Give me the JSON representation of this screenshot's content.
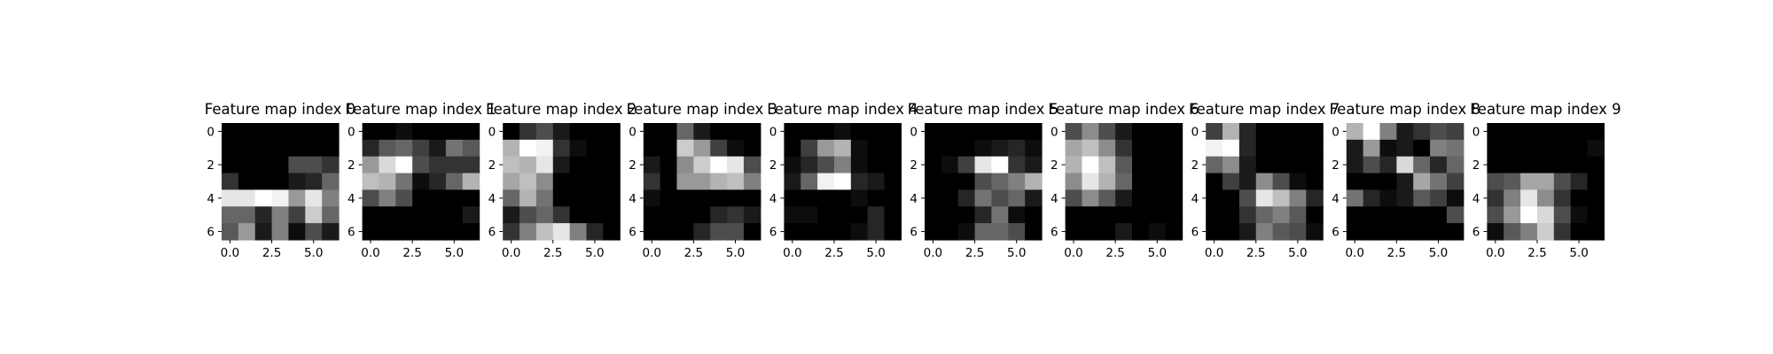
{
  "chart_data": {
    "type": "heatmap",
    "colormap": "gray",
    "value_range": [
      0,
      1
    ],
    "xticks": [
      0,
      2.5,
      5
    ],
    "xtick_labels": [
      "0.0",
      "2.5",
      "5.0"
    ],
    "yticks": [
      0,
      2,
      4,
      6
    ],
    "ytick_labels": [
      "0",
      "2",
      "4",
      "6"
    ],
    "panels": [
      {
        "title": "Feature map index 0",
        "values": [
          [
            0.0,
            0.0,
            0.0,
            0.0,
            0.0,
            0.0,
            0.0
          ],
          [
            0.0,
            0.0,
            0.0,
            0.0,
            0.0,
            0.0,
            0.0
          ],
          [
            0.0,
            0.0,
            0.0,
            0.0,
            0.3,
            0.3,
            0.2
          ],
          [
            0.2,
            0.0,
            0.0,
            0.0,
            0.1,
            0.15,
            0.4
          ],
          [
            0.9,
            0.9,
            1.0,
            0.95,
            0.6,
            0.9,
            0.5
          ],
          [
            0.4,
            0.4,
            0.15,
            0.5,
            0.25,
            0.8,
            0.4
          ],
          [
            0.35,
            0.6,
            0.1,
            0.5,
            0.05,
            0.3,
            0.1
          ]
        ]
      },
      {
        "title": "Feature map index 1",
        "values": [
          [
            0.0,
            0.0,
            0.05,
            0.0,
            0.0,
            0.0,
            0.0
          ],
          [
            0.15,
            0.35,
            0.4,
            0.25,
            0.1,
            0.45,
            0.35
          ],
          [
            0.6,
            0.85,
            1.0,
            0.3,
            0.2,
            0.2,
            0.2
          ],
          [
            0.75,
            0.7,
            0.45,
            0.05,
            0.15,
            0.4,
            0.7
          ],
          [
            0.3,
            0.5,
            0.3,
            0.0,
            0.0,
            0.0,
            0.0
          ],
          [
            0.0,
            0.0,
            0.0,
            0.0,
            0.0,
            0.0,
            0.1
          ],
          [
            0.0,
            0.0,
            0.0,
            0.0,
            0.0,
            0.0,
            0.0
          ]
        ]
      },
      {
        "title": "Feature map index 2",
        "values": [
          [
            0.0,
            0.2,
            0.3,
            0.1,
            0.0,
            0.0,
            0.0
          ],
          [
            0.7,
            1.0,
            0.95,
            0.2,
            0.05,
            0.0,
            0.0
          ],
          [
            0.75,
            0.7,
            0.9,
            0.1,
            0.0,
            0.0,
            0.0
          ],
          [
            0.65,
            0.75,
            0.55,
            0.0,
            0.0,
            0.0,
            0.0
          ],
          [
            0.4,
            0.7,
            0.45,
            0.0,
            0.0,
            0.0,
            0.0
          ],
          [
            0.1,
            0.3,
            0.4,
            0.2,
            0.0,
            0.0,
            0.0
          ],
          [
            0.2,
            0.5,
            0.75,
            0.9,
            0.5,
            0.15,
            0.0
          ]
        ]
      },
      {
        "title": "Feature map index 3",
        "values": [
          [
            0.0,
            0.0,
            0.4,
            0.1,
            0.0,
            0.0,
            0.0
          ],
          [
            0.0,
            0.0,
            0.8,
            0.6,
            0.25,
            0.05,
            0.0
          ],
          [
            0.1,
            0.0,
            0.55,
            0.8,
            1.0,
            0.9,
            0.3
          ],
          [
            0.2,
            0.0,
            0.6,
            0.6,
            0.7,
            0.75,
            0.5
          ],
          [
            0.05,
            0.0,
            0.0,
            0.0,
            0.0,
            0.0,
            0.0
          ],
          [
            0.0,
            0.0,
            0.0,
            0.0,
            0.15,
            0.2,
            0.1
          ],
          [
            0.0,
            0.0,
            0.0,
            0.15,
            0.3,
            0.3,
            0.0
          ]
        ]
      },
      {
        "title": "Feature map index 4",
        "values": [
          [
            0.0,
            0.0,
            0.0,
            0.05,
            0.0,
            0.0,
            0.0
          ],
          [
            0.0,
            0.25,
            0.6,
            0.7,
            0.05,
            0.0,
            0.0
          ],
          [
            0.05,
            0.15,
            0.3,
            0.5,
            0.05,
            0.0,
            0.0
          ],
          [
            0.1,
            0.4,
            0.95,
            1.0,
            0.15,
            0.1,
            0.0
          ],
          [
            0.0,
            0.0,
            0.0,
            0.0,
            0.05,
            0.0,
            0.0
          ],
          [
            0.05,
            0.05,
            0.0,
            0.0,
            0.0,
            0.15,
            0.0
          ],
          [
            0.0,
            0.0,
            0.0,
            0.0,
            0.05,
            0.15,
            0.0
          ]
        ]
      },
      {
        "title": "Feature map index 5",
        "values": [
          [
            0.0,
            0.0,
            0.0,
            0.0,
            0.0,
            0.0,
            0.0
          ],
          [
            0.0,
            0.0,
            0.0,
            0.05,
            0.1,
            0.15,
            0.05
          ],
          [
            0.0,
            0.05,
            0.25,
            0.9,
            1.0,
            0.2,
            0.1
          ],
          [
            0.0,
            0.0,
            0.0,
            0.3,
            0.4,
            0.5,
            0.7
          ],
          [
            0.0,
            0.0,
            0.15,
            0.45,
            0.3,
            0.4,
            0.1
          ],
          [
            0.0,
            0.0,
            0.0,
            0.15,
            0.45,
            0.05,
            0.0
          ],
          [
            0.0,
            0.0,
            0.05,
            0.4,
            0.4,
            0.3,
            0.0
          ]
        ]
      },
      {
        "title": "Feature map index 6",
        "values": [
          [
            0.3,
            0.55,
            0.3,
            0.1,
            0.0,
            0.0,
            0.0
          ],
          [
            0.65,
            0.75,
            0.55,
            0.2,
            0.0,
            0.0,
            0.0
          ],
          [
            0.7,
            1.0,
            0.75,
            0.35,
            0.0,
            0.0,
            0.0
          ],
          [
            0.55,
            0.9,
            0.7,
            0.4,
            0.0,
            0.0,
            0.0
          ],
          [
            0.3,
            0.55,
            0.35,
            0.1,
            0.0,
            0.0,
            0.0
          ],
          [
            0.0,
            0.0,
            0.0,
            0.0,
            0.0,
            0.0,
            0.0
          ],
          [
            0.0,
            0.0,
            0.0,
            0.1,
            0.0,
            0.05,
            0.0
          ]
        ]
      },
      {
        "title": "Feature map index 7",
        "values": [
          [
            0.25,
            0.7,
            0.15,
            0.0,
            0.0,
            0.0,
            0.0
          ],
          [
            0.95,
            1.0,
            0.15,
            0.0,
            0.0,
            0.0,
            0.0
          ],
          [
            0.4,
            0.55,
            0.1,
            0.0,
            0.0,
            0.0,
            0.0
          ],
          [
            0.0,
            0.25,
            0.1,
            0.55,
            0.3,
            0.05,
            0.0
          ],
          [
            0.0,
            0.0,
            0.3,
            0.9,
            0.75,
            0.5,
            0.15
          ],
          [
            0.0,
            0.0,
            0.2,
            0.4,
            0.5,
            0.35,
            0.0
          ],
          [
            0.0,
            0.0,
            0.1,
            0.5,
            0.35,
            0.3,
            0.05
          ]
        ]
      },
      {
        "title": "Feature map index 8",
        "values": [
          [
            0.7,
            1.0,
            0.5,
            0.1,
            0.2,
            0.3,
            0.25
          ],
          [
            0.1,
            0.6,
            0.05,
            0.1,
            0.0,
            0.5,
            0.45
          ],
          [
            0.1,
            0.3,
            0.15,
            0.85,
            0.4,
            0.15,
            0.4
          ],
          [
            0.0,
            0.0,
            0.0,
            0.1,
            0.65,
            0.45,
            0.25
          ],
          [
            0.45,
            0.15,
            0.05,
            0.1,
            0.35,
            0.25,
            0.05
          ],
          [
            0.0,
            0.0,
            0.0,
            0.0,
            0.0,
            0.0,
            0.3
          ],
          [
            0.0,
            0.0,
            0.0,
            0.0,
            0.0,
            0.0,
            0.0
          ]
        ]
      },
      {
        "title": "Feature map index 9",
        "values": [
          [
            0.0,
            0.0,
            0.0,
            0.0,
            0.0,
            0.0,
            0.0
          ],
          [
            0.0,
            0.0,
            0.0,
            0.0,
            0.0,
            0.0,
            0.05
          ],
          [
            0.0,
            0.0,
            0.0,
            0.0,
            0.0,
            0.0,
            0.0
          ],
          [
            0.3,
            0.35,
            0.65,
            0.65,
            0.3,
            0.15,
            0.0
          ],
          [
            0.2,
            0.5,
            0.9,
            0.55,
            0.2,
            0.0,
            0.0
          ],
          [
            0.3,
            0.6,
            1.0,
            0.85,
            0.3,
            0.05,
            0.0
          ],
          [
            0.05,
            0.35,
            0.5,
            0.8,
            0.2,
            0.0,
            0.0
          ]
        ]
      }
    ]
  }
}
